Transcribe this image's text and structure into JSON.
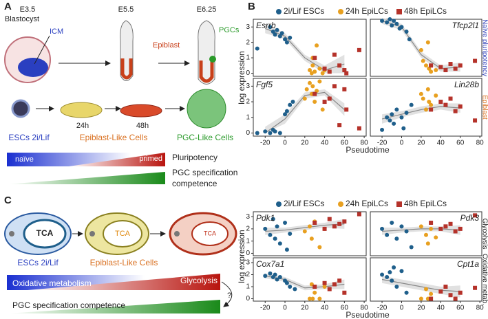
{
  "panel_a": {
    "label": "A",
    "stages": [
      {
        "day": "E3.5",
        "name": "Blastocyst",
        "region": "ICM"
      },
      {
        "day": "E5.5",
        "region": "Epiblast"
      },
      {
        "day": "E6.25",
        "region": "PGCs"
      }
    ],
    "cells": [
      "ESCs 2i/Lif",
      "Epiblast-Like Cells",
      "PGC-Like Cells"
    ],
    "times": [
      "24h",
      "48h"
    ],
    "bar1": {
      "left": "naïve",
      "right": "primed",
      "label": "Pluripotency"
    },
    "bar2": {
      "label": [
        "PGC specification",
        "competence"
      ]
    }
  },
  "panel_b": {
    "label": "B",
    "xlabel": "Pseudotime",
    "ylabel": "log expression",
    "xlim": [
      -32,
      82
    ],
    "xticks": [
      -20,
      0,
      20,
      40,
      60,
      80
    ],
    "fit_color": "#888888",
    "band_color": "#d9d9d9",
    "groups": [
      {
        "legend": [
          {
            "name": "2i/Lif ESCs",
            "color": "#1f5f8b"
          },
          {
            "name": "24h EpiLCs",
            "color": "#e8a020"
          },
          {
            "name": "48h EpiLCs",
            "color": "#b5322a"
          }
        ],
        "side_labels": [
          {
            "text": "Naïve pluripotency",
            "color": "#3344bb"
          },
          {
            "text": "Epiblast",
            "color": "#d97020"
          }
        ],
        "ylim": [
          -0.2,
          3.5
        ],
        "yticks": [
          0,
          1,
          2,
          3
        ],
        "charts": [
          {
            "type": "scatter",
            "title": "Esrrb",
            "series": [
              {
                "x": [
                  -28,
                  -15,
                  -12,
                  -10,
                  -8,
                  -5,
                  -3,
                  0,
                  2,
                  5
                ],
                "values": [
                  1.6,
                  3.0,
                  2.7,
                  2.5,
                  2.8,
                  2.4,
                  2.6,
                  2.2,
                  2.0,
                  2.3
                ]
              },
              {
                "x": [
                  25,
                  27,
                  28,
                  30,
                  32,
                  35,
                  38,
                  40,
                  45,
                  28
                ],
                "values": [
                  0.2,
                  0,
                  0.5,
                  0.1,
                  1.8,
                  0.3,
                  0,
                  0.2,
                  0.1,
                  1.0
                ]
              },
              {
                "x": [
                  30,
                  40,
                  45,
                  50,
                  55,
                  60,
                  62,
                  75
                ],
                "values": [
                  1.0,
                  0.3,
                  0.1,
                  1.2,
                  0.5,
                  0.2,
                  0,
                  1.5
                ]
              }
            ],
            "fit": {
              "x": [
                -20,
                0,
                20,
                40,
                60
              ],
              "values": [
                2.9,
                2.4,
                1.0,
                0.2,
                0.6
              ],
              "lower": [
                2.6,
                2.2,
                0.8,
                0,
                0
              ],
              "upper": [
                3.2,
                2.6,
                1.2,
                0.5,
                1.2
              ]
            }
          },
          {
            "type": "scatter",
            "title": "Tfcp2l1",
            "series": [
              {
                "x": [
                  -20,
                  -15,
                  -12,
                  -10,
                  -8,
                  -5,
                  -2,
                  0,
                  5,
                  8
                ],
                "values": [
                  3.4,
                  3.3,
                  3.5,
                  3.1,
                  3.4,
                  3.2,
                  2.9,
                  3.0,
                  2.7,
                  2.2
                ]
              },
              {
                "x": [
                  20,
                  22,
                  25,
                  27,
                  28,
                  30,
                  35
                ],
                "values": [
                  1.5,
                  0.8,
                  0.5,
                  2.0,
                  0.3,
                  0.1,
                  0.2
                ]
              },
              {
                "x": [
                  30,
                  40,
                  45,
                  50,
                  55,
                  60,
                  75
                ],
                "values": [
                  0.5,
                  0.4,
                  0.2,
                  0.6,
                  0.3,
                  0.5,
                  0.8
                ]
              }
            ],
            "fit": {
              "x": [
                -20,
                0,
                20,
                40,
                60
              ],
              "values": [
                3.4,
                3.0,
                1.2,
                0.3,
                0.4
              ],
              "lower": [
                3.2,
                2.8,
                1.0,
                0.1,
                0.1
              ],
              "upper": [
                3.6,
                3.2,
                1.4,
                0.5,
                0.7
              ]
            }
          },
          {
            "type": "scatter",
            "title": "Fgf5",
            "series": [
              {
                "x": [
                  -28,
                  -20,
                  -15,
                  -12,
                  -10,
                  -5,
                  0,
                  2,
                  5,
                  8
                ],
                "values": [
                  0,
                  0.1,
                  0,
                  0.2,
                  0.1,
                  0,
                  1.2,
                  1.4,
                  1.8,
                  2.0
                ]
              },
              {
                "x": [
                  20,
                  22,
                  25,
                  27,
                  28,
                  30,
                  32,
                  35,
                  38
                ],
                "values": [
                  2.2,
                  2.8,
                  3.2,
                  2.5,
                  3.0,
                  2.0,
                  2.7,
                  3.3,
                  1.5
                ]
              },
              {
                "x": [
                  30,
                  40,
                  45,
                  50,
                  55,
                  60,
                  62,
                  75
                ],
                "values": [
                  2.5,
                  2.0,
                  2.2,
                  3.0,
                  0.5,
                  2.8,
                  1.5,
                  0.3
                ]
              }
            ],
            "fit": {
              "x": [
                -20,
                0,
                20,
                40,
                60
              ],
              "values": [
                0,
                0.9,
                2.4,
                2.6,
                1.5
              ],
              "lower": [
                0,
                0.6,
                2.2,
                2.4,
                1.1
              ],
              "upper": [
                0.4,
                1.2,
                2.6,
                2.8,
                1.9
              ]
            }
          },
          {
            "type": "scatter",
            "title": "Lin28b",
            "series": [
              {
                "x": [
                  -20,
                  -15,
                  -12,
                  -10,
                  -8,
                  -5,
                  0,
                  2,
                  5,
                  10
                ],
                "values": [
                  0.2,
                  1.0,
                  0.8,
                  1.2,
                  0.6,
                  1.5,
                  1.0,
                  0.3,
                  1.3,
                  1.8
                ]
              },
              {
                "x": [
                  20,
                  22,
                  25,
                  27,
                  28,
                  30,
                  35
                ],
                "values": [
                  2.5,
                  2.2,
                  1.5,
                  2.8,
                  2.0,
                  1.8,
                  2.4
                ]
              },
              {
                "x": [
                  30,
                  40,
                  45,
                  50,
                  55,
                  60,
                  75
                ],
                "values": [
                  1.5,
                  2.0,
                  1.8,
                  2.2,
                  1.4,
                  1.7,
                  0.8
                ]
              }
            ],
            "fit": {
              "x": [
                -20,
                0,
                20,
                40,
                60
              ],
              "values": [
                0.9,
                1.2,
                1.5,
                1.7,
                1.6
              ],
              "lower": [
                0.6,
                1.0,
                1.3,
                1.5,
                1.3
              ],
              "upper": [
                1.2,
                1.4,
                1.7,
                1.9,
                1.9
              ]
            }
          }
        ]
      },
      {
        "legend": [
          {
            "name": "2i/Lif ESCs",
            "color": "#1f5f8b"
          },
          {
            "name": "24h EpiLCs",
            "color": "#e8a020"
          },
          {
            "name": "48h EpiLCs",
            "color": "#b5322a"
          }
        ],
        "side_labels": [
          {
            "text": "Glycolysis",
            "color": "#222222"
          },
          {
            "text": "Oxidative metab.",
            "color": "#222222"
          }
        ],
        "ylim": [
          -0.2,
          3.4
        ],
        "yticks": [
          0,
          1,
          2,
          3
        ],
        "charts": [
          {
            "type": "scatter",
            "title": "Pdk1",
            "series": [
              {
                "x": [
                  -20,
                  -15,
                  -12,
                  -10,
                  -8,
                  -5,
                  0,
                  2,
                  5
                ],
                "values": [
                  2.0,
                  1.5,
                  2.8,
                  1.2,
                  2.2,
                  0.8,
                  2.5,
                  0.3,
                  1.6
                ]
              },
              {
                "x": [
                  20,
                  25,
                  27,
                  30,
                  35,
                  40
                ],
                "values": [
                  1.8,
                  2.2,
                  1.2,
                  2.6,
                  0.5,
                  2.0
                ]
              },
              {
                "x": [
                  30,
                  40,
                  45,
                  50,
                  55,
                  60,
                  75
                ],
                "values": [
                  2.5,
                  2.0,
                  2.8,
                  2.2,
                  2.4,
                  2.6,
                  3.2
                ]
              }
            ],
            "fit": {
              "x": [
                -20,
                0,
                20,
                40,
                60
              ],
              "values": [
                1.8,
                1.9,
                2.1,
                2.3,
                2.4
              ],
              "lower": [
                1.5,
                1.7,
                1.9,
                2.1,
                2.0
              ],
              "upper": [
                2.1,
                2.1,
                2.3,
                2.5,
                2.8
              ]
            }
          },
          {
            "type": "scatter",
            "title": "Pdk3",
            "series": [
              {
                "x": [
                  -20,
                  -15,
                  -10,
                  -5,
                  0,
                  5,
                  10
                ],
                "values": [
                  2.0,
                  1.5,
                  2.5,
                  1.2,
                  2.2,
                  1.8,
                  0.5
                ]
              },
              {
                "x": [
                  20,
                  25,
                  27,
                  30,
                  35
                ],
                "values": [
                  2.2,
                  1.5,
                  0.8,
                  2.0,
                  1.3
                ]
              },
              {
                "x": [
                  30,
                  40,
                  45,
                  50,
                  55,
                  60,
                  75
                ],
                "values": [
                  2.5,
                  2.0,
                  2.2,
                  2.4,
                  1.8,
                  2.0,
                  3.1
                ]
              }
            ],
            "fit": {
              "x": [
                -20,
                0,
                20,
                40,
                60
              ],
              "values": [
                1.8,
                1.9,
                2.0,
                2.0,
                1.9
              ],
              "lower": [
                1.5,
                1.7,
                1.8,
                1.8,
                1.5
              ],
              "upper": [
                2.1,
                2.1,
                2.2,
                2.2,
                2.3
              ]
            }
          },
          {
            "type": "scatter",
            "title": "Cox7a1",
            "series": [
              {
                "x": [
                  -20,
                  -15,
                  -12,
                  -10,
                  -8,
                  -5,
                  0,
                  2,
                  5,
                  10
                ],
                "values": [
                  1.9,
                  2.1,
                  1.8,
                  2.0,
                  1.6,
                  1.8,
                  1.5,
                  1.3,
                  1.0,
                  0.8
                ]
              },
              {
                "x": [
                  25,
                  27,
                  28,
                  30,
                  35,
                  40
                ],
                "values": [
                  0,
                  1.2,
                  0,
                  0.5,
                  0,
                  1.0
                ]
              },
              {
                "x": [
                  30,
                  40,
                  45,
                  50,
                  55,
                  60
                ],
                "values": [
                  1.0,
                  1.3,
                  0.8,
                  1.2,
                  1.5,
                  0.5
                ]
              }
            ],
            "fit": {
              "x": [
                -20,
                0,
                20,
                40,
                60
              ],
              "values": [
                1.9,
                1.6,
                0.9,
                1.0,
                1.2
              ],
              "lower": [
                1.7,
                1.4,
                0.7,
                0.8,
                0.8
              ],
              "upper": [
                2.1,
                1.8,
                1.1,
                1.2,
                1.6
              ]
            }
          },
          {
            "type": "scatter",
            "title": "Cpt1a",
            "series": [
              {
                "x": [
                  -20,
                  -15,
                  -12,
                  -10,
                  -8,
                  -5,
                  0,
                  5
                ],
                "values": [
                  2.0,
                  1.8,
                  2.2,
                  1.5,
                  2.6,
                  1.0,
                  2.3,
                  0.5
                ]
              },
              {
                "x": [
                  20,
                  25,
                  27,
                  30
                ],
                "values": [
                  0,
                  0.8,
                  0,
                  0.4
                ]
              },
              {
                "x": [
                  30,
                  40,
                  45,
                  50,
                  55,
                  60,
                  75
                ],
                "values": [
                  0,
                  0.6,
                  1.0,
                  0.3,
                  0,
                  0.5,
                  0.9
                ]
              }
            ],
            "fit": {
              "x": [
                -20,
                0,
                20,
                40,
                60
              ],
              "values": [
                1.6,
                1.3,
                1.0,
                0.7,
                0.6
              ],
              "lower": [
                1.3,
                1.0,
                0.7,
                0.4,
                0.1
              ],
              "upper": [
                1.9,
                1.6,
                1.3,
                1.0,
                1.1
              ]
            }
          }
        ]
      }
    ]
  },
  "panel_c": {
    "label": "C",
    "mitochondria": [
      {
        "label": "TCA"
      },
      {
        "label": "TCA"
      },
      {
        "label": "TCA"
      }
    ],
    "cells": [
      "ESCs 2i/Lif",
      "Epiblast-Like Cells"
    ],
    "bar1": {
      "left": "Oxidative metabolism",
      "right": "Glycolysis"
    },
    "question": "?",
    "bar2": {
      "label": "PGC specification competence"
    }
  }
}
